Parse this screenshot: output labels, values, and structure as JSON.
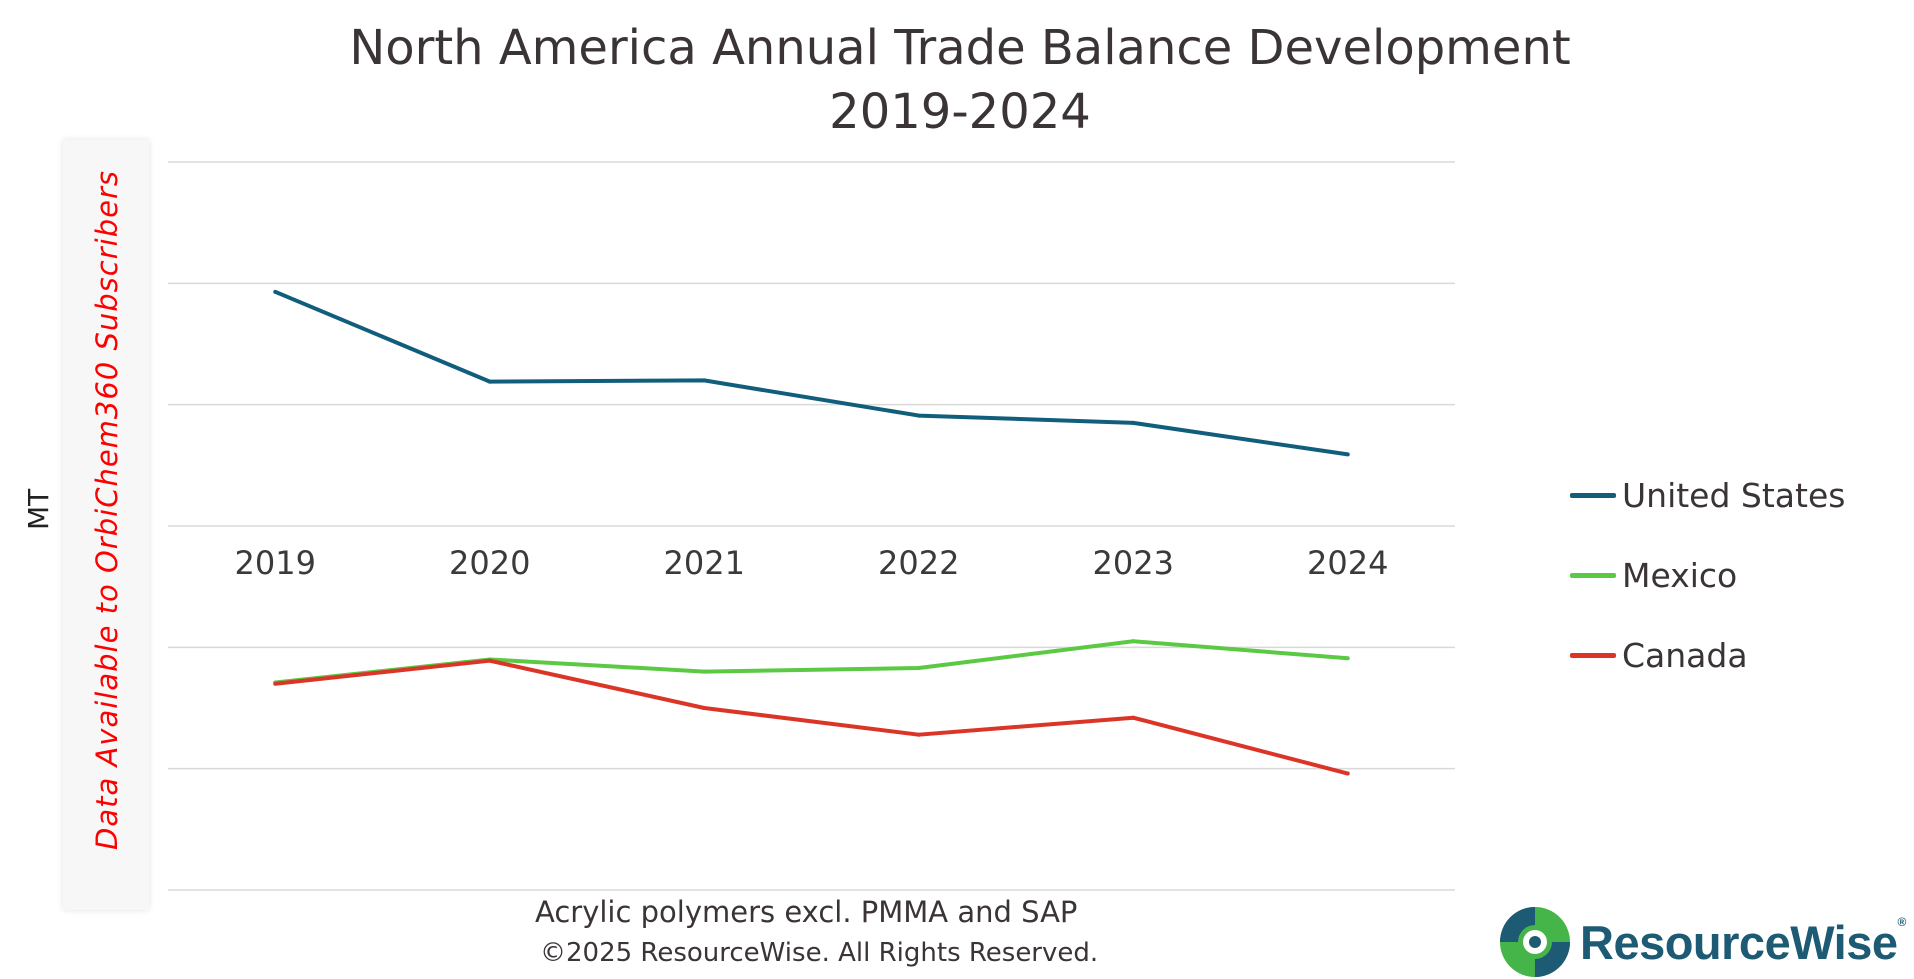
{
  "chart_data": {
    "type": "line",
    "title": "North America Annual Trade Balance Development",
    "subtitle": "2019-2024",
    "ylabel": "MT",
    "categories": [
      "2019",
      "2020",
      "2021",
      "2022",
      "2023",
      "2024"
    ],
    "ylim": [
      -3,
      3
    ],
    "grid": true,
    "legend_position": "right",
    "series": [
      {
        "name": "United States",
        "color": "#115e7c",
        "values": [
          1.93,
          1.19,
          1.2,
          0.91,
          0.85,
          0.59
        ]
      },
      {
        "name": "Mexico",
        "color": "#5bc944",
        "values": [
          -1.29,
          -1.1,
          -1.2,
          -1.17,
          -0.95,
          -1.09
        ]
      },
      {
        "name": "Canada",
        "color": "#db3528",
        "values": [
          -1.3,
          -1.11,
          -1.5,
          -1.72,
          -1.58,
          -2.04
        ]
      }
    ]
  },
  "overlay_text": "Data Available to OrbiChem360 Subscribers",
  "footer": {
    "product": "Acrylic polymers excl. PMMA and SAP",
    "copyright": "©2025 ResourceWise. All Rights Reserved."
  },
  "logo": {
    "text": "ResourceWise",
    "registered": "®",
    "colors": [
      "#1d5a73",
      "#45b549"
    ]
  }
}
